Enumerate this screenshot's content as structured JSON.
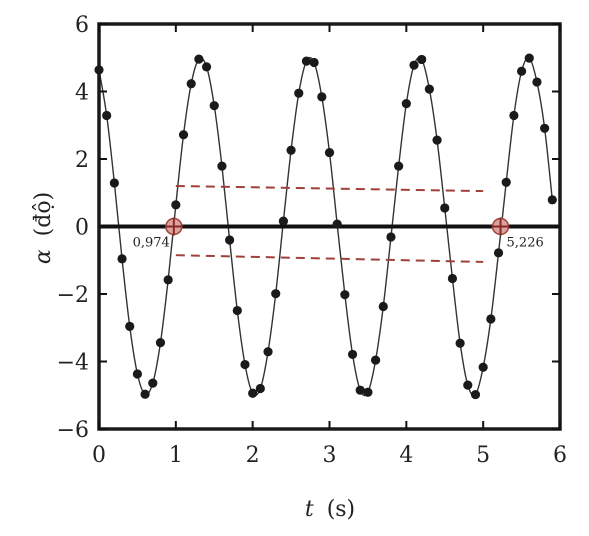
{
  "chart_data": {
    "type": "line",
    "xlabel_var": "t",
    "xlabel_unit": "(s)",
    "ylabel_var": "α",
    "ylabel_unit": "(độ)",
    "xlim": [
      0,
      6
    ],
    "ylim": [
      -6,
      6
    ],
    "x_ticks": [
      0,
      1,
      2,
      3,
      4,
      5,
      6
    ],
    "y_ticks": [
      -6,
      -4,
      -2,
      0,
      2,
      4,
      6
    ],
    "x_tick_labels": [
      "0",
      "1",
      "2",
      "3",
      "4",
      "5",
      "6"
    ],
    "y_tick_labels": [
      "−6",
      "−4",
      "−2",
      "0",
      "2",
      "4",
      "6"
    ],
    "grid": false,
    "zero_line": true,
    "series": [
      {
        "style": "points-with-line",
        "color": "#1a1a1a",
        "x": [
          0.0,
          0.1,
          0.2,
          0.3,
          0.4,
          0.5,
          0.6,
          0.7,
          0.8,
          0.9,
          1.0,
          1.1,
          1.2,
          1.3,
          1.4,
          1.5,
          1.6,
          1.7,
          1.8,
          1.9,
          2.0,
          2.1,
          2.2,
          2.3,
          2.4,
          2.5,
          2.6,
          2.7,
          2.8,
          2.9,
          3.0,
          3.1,
          3.2,
          3.3,
          3.4,
          3.5,
          3.6,
          3.7,
          3.8,
          3.9,
          4.0,
          4.1,
          4.2,
          4.3,
          4.4,
          4.5,
          4.6,
          4.7,
          4.8,
          4.9,
          5.0,
          5.1,
          5.2,
          5.3,
          5.4,
          5.5,
          5.6,
          5.7,
          5.8,
          5.9
        ],
        "y": [
          4.64,
          3.29,
          1.29,
          -0.96,
          -2.96,
          -4.37,
          -4.97,
          -4.64,
          -3.44,
          -1.58,
          0.64,
          2.72,
          4.23,
          4.96,
          4.73,
          3.58,
          1.79,
          -0.4,
          -2.49,
          -4.09,
          -4.94,
          -4.8,
          -3.71,
          -1.99,
          0.16,
          2.26,
          3.95,
          4.9,
          4.86,
          3.84,
          2.19,
          0.07,
          -2.02,
          -3.79,
          -4.85,
          -4.91,
          -3.96,
          -2.37,
          -0.31,
          1.79,
          3.64,
          4.78,
          4.95,
          4.07,
          2.56,
          0.55,
          -1.54,
          -3.46,
          -4.7,
          -4.98,
          -4.17,
          -2.74,
          -0.78,
          1.31,
          3.29,
          4.6,
          4.99,
          4.28,
          2.91,
          0.79
        ]
      }
    ],
    "highlight_points": [
      {
        "x": 0.974,
        "y": 0,
        "label": "0,974"
      },
      {
        "x": 5.226,
        "y": 0,
        "label": "5,226"
      }
    ],
    "reference_lines": [
      {
        "style": "dashed",
        "color": "#a0403a",
        "x": [
          1.0,
          5.0
        ],
        "y": [
          1.2,
          1.05
        ]
      },
      {
        "style": "dashed",
        "color": "#a0403a",
        "x": [
          1.0,
          5.0
        ],
        "y": [
          -0.85,
          -1.05
        ]
      }
    ]
  }
}
